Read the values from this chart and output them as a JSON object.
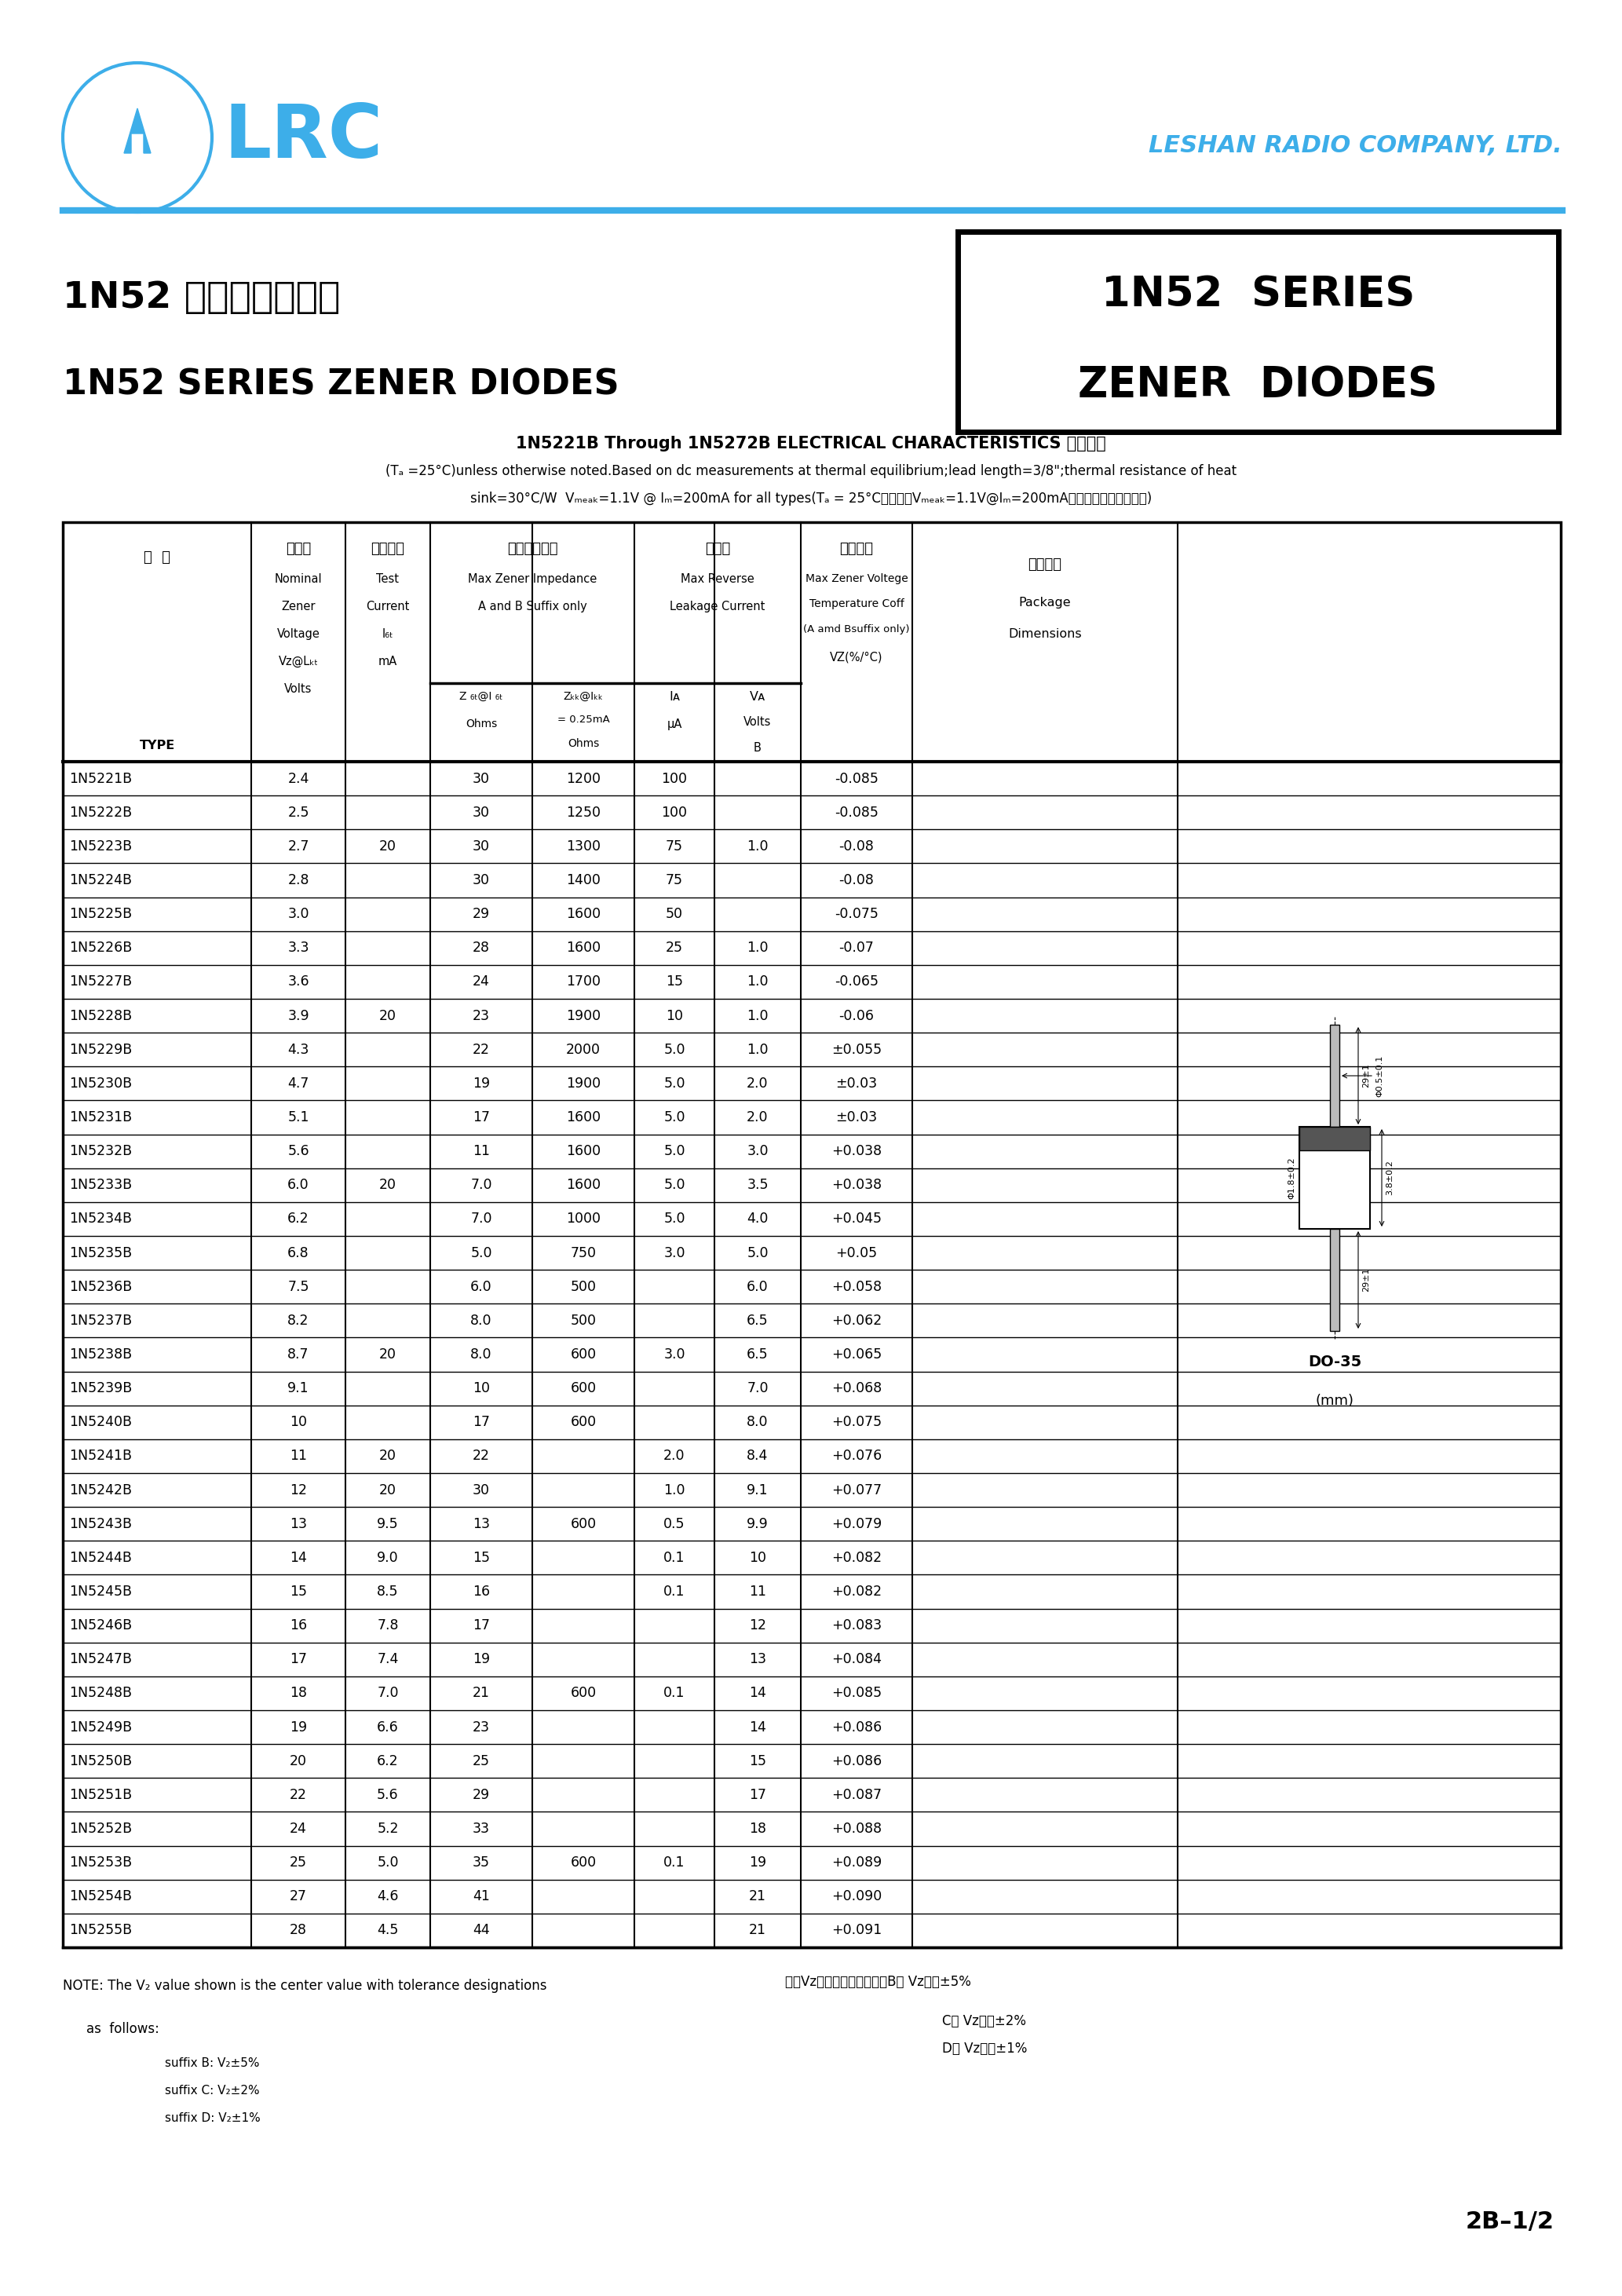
{
  "bg_color": "#ffffff",
  "lrc_color": "#3daee9",
  "company_name": "LESHAN RADIO COMPANY, LTD.",
  "title_box_text1": "1N52  SERIES",
  "title_box_text2": "ZENER  DIODES",
  "chinese_title": "1N52 系列稳压二极管",
  "english_title": "1N52 SERIES ZENER DIODES",
  "char_title": "1N5221B Through 1N5272B ELECTRICAL CHARACTERISTICS 电性参数",
  "char_note1": "(Tₐ =25°C)unless otherwise noted.Based on dc measurements at thermal equilibrium;lead length=3/8\";thermal resistance of heat",
  "char_note2": "sink=30°C/W  Vₘₑₐₖ=1.1V @ Iₘ=200mA for all types(Tₐ = 25°C所有型号Vₘₑₐₖ=1.1V@Iₘ=200mA，其它特别说明除外。)",
  "table_data": [
    [
      "1N5221B",
      "2.4",
      "",
      "30",
      "1200",
      "100",
      "",
      "-0.085"
    ],
    [
      "1N5222B",
      "2.5",
      "",
      "30",
      "1250",
      "100",
      "",
      "-0.085"
    ],
    [
      "1N5223B",
      "2.7",
      "20",
      "30",
      "1300",
      "75",
      "1.0",
      "-0.08"
    ],
    [
      "1N5224B",
      "2.8",
      "",
      "30",
      "1400",
      "75",
      "",
      "-0.08"
    ],
    [
      "1N5225B",
      "3.0",
      "",
      "29",
      "1600",
      "50",
      "",
      "-0.075"
    ],
    [
      "1N5226B",
      "3.3",
      "",
      "28",
      "1600",
      "25",
      "1.0",
      "-0.07"
    ],
    [
      "1N5227B",
      "3.6",
      "",
      "24",
      "1700",
      "15",
      "1.0",
      "-0.065"
    ],
    [
      "1N5228B",
      "3.9",
      "20",
      "23",
      "1900",
      "10",
      "1.0",
      "-0.06"
    ],
    [
      "1N5229B",
      "4.3",
      "",
      "22",
      "2000",
      "5.0",
      "1.0",
      "±0.055"
    ],
    [
      "1N5230B",
      "4.7",
      "",
      "19",
      "1900",
      "5.0",
      "2.0",
      "±0.03"
    ],
    [
      "1N5231B",
      "5.1",
      "",
      "17",
      "1600",
      "5.0",
      "2.0",
      "±0.03"
    ],
    [
      "1N5232B",
      "5.6",
      "",
      "11",
      "1600",
      "5.0",
      "3.0",
      "+0.038"
    ],
    [
      "1N5233B",
      "6.0",
      "20",
      "7.0",
      "1600",
      "5.0",
      "3.5",
      "+0.038"
    ],
    [
      "1N5234B",
      "6.2",
      "",
      "7.0",
      "1000",
      "5.0",
      "4.0",
      "+0.045"
    ],
    [
      "1N5235B",
      "6.8",
      "",
      "5.0",
      "750",
      "3.0",
      "5.0",
      "+0.05"
    ],
    [
      "1N5236B",
      "7.5",
      "",
      "6.0",
      "500",
      "",
      "6.0",
      "+0.058"
    ],
    [
      "1N5237B",
      "8.2",
      "",
      "8.0",
      "500",
      "",
      "6.5",
      "+0.062"
    ],
    [
      "1N5238B",
      "8.7",
      "20",
      "8.0",
      "600",
      "3.0",
      "6.5",
      "+0.065"
    ],
    [
      "1N5239B",
      "9.1",
      "",
      "10",
      "600",
      "",
      "7.0",
      "+0.068"
    ],
    [
      "1N5240B",
      "10",
      "",
      "17",
      "600",
      "",
      "8.0",
      "+0.075"
    ],
    [
      "1N5241B",
      "11",
      "20",
      "22",
      "",
      "2.0",
      "8.4",
      "+0.076"
    ],
    [
      "1N5242B",
      "12",
      "20",
      "30",
      "",
      "1.0",
      "9.1",
      "+0.077"
    ],
    [
      "1N5243B",
      "13",
      "9.5",
      "13",
      "600",
      "0.5",
      "9.9",
      "+0.079"
    ],
    [
      "1N5244B",
      "14",
      "9.0",
      "15",
      "",
      "0.1",
      "10",
      "+0.082"
    ],
    [
      "1N5245B",
      "15",
      "8.5",
      "16",
      "",
      "0.1",
      "11",
      "+0.082"
    ],
    [
      "1N5246B",
      "16",
      "7.8",
      "17",
      "",
      "",
      "12",
      "+0.083"
    ],
    [
      "1N5247B",
      "17",
      "7.4",
      "19",
      "",
      "",
      "13",
      "+0.084"
    ],
    [
      "1N5248B",
      "18",
      "7.0",
      "21",
      "600",
      "0.1",
      "14",
      "+0.085"
    ],
    [
      "1N5249B",
      "19",
      "6.6",
      "23",
      "",
      "",
      "14",
      "+0.086"
    ],
    [
      "1N5250B",
      "20",
      "6.2",
      "25",
      "",
      "",
      "15",
      "+0.086"
    ],
    [
      "1N5251B",
      "22",
      "5.6",
      "29",
      "",
      "",
      "17",
      "+0.087"
    ],
    [
      "1N5252B",
      "24",
      "5.2",
      "33",
      "",
      "",
      "18",
      "+0.088"
    ],
    [
      "1N5253B",
      "25",
      "5.0",
      "35",
      "600",
      "0.1",
      "19",
      "+0.089"
    ],
    [
      "1N5254B",
      "27",
      "4.6",
      "41",
      "",
      "",
      "21",
      "+0.090"
    ],
    [
      "1N5255B",
      "28",
      "4.5",
      "44",
      "",
      "",
      "21",
      "+0.091"
    ]
  ],
  "note1": "NOTE: The V₂ value shown is the center value with tolerance designations",
  "note2": "as  follows:",
  "note3": "suffix B: V₂±5%",
  "note4": "suffix C: V₂±2%",
  "note5": "suffix D: V₂±1%",
  "note_right1": "注：Vz为稳压心心值，其中B型 Vz容差±5%",
  "note_right2": "C型 Vz容差±2%",
  "note_right3": "D型 Vz容差±1%",
  "page_num": "2B–1/2"
}
